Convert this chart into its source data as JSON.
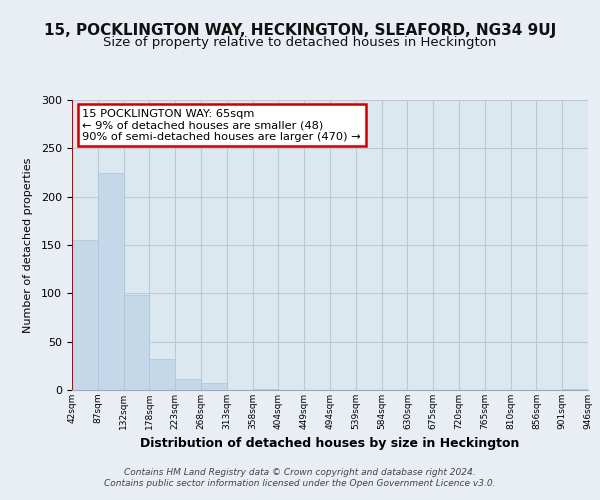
{
  "title": "15, POCKLINGTON WAY, HECKINGTON, SLEAFORD, NG34 9UJ",
  "subtitle": "Size of property relative to detached houses in Heckington",
  "xlabel": "Distribution of detached houses by size in Heckington",
  "ylabel": "Number of detached properties",
  "bar_values": [
    155,
    225,
    98,
    32,
    11,
    7,
    0,
    1,
    0,
    0,
    0,
    0,
    0,
    0,
    0,
    0,
    0,
    0,
    0,
    1
  ],
  "bar_labels": [
    "42sqm",
    "87sqm",
    "132sqm",
    "178sqm",
    "223sqm",
    "268sqm",
    "313sqm",
    "358sqm",
    "404sqm",
    "449sqm",
    "494sqm",
    "539sqm",
    "584sqm",
    "630sqm",
    "675sqm",
    "720sqm",
    "765sqm",
    "810sqm",
    "856sqm",
    "901sqm",
    "946sqm"
  ],
  "bar_color": "#c5d8ea",
  "bar_edge_color": "#aac4da",
  "annotation_box_text": "15 POCKLINGTON WAY: 65sqm\n← 9% of detached houses are smaller (48)\n90% of semi-detached houses are larger (470) →",
  "annotation_box_color": "#ffffff",
  "annotation_box_edge_color": "#cc0000",
  "red_line_color": "#cc0000",
  "ylim": [
    0,
    300
  ],
  "yticks": [
    0,
    50,
    100,
    150,
    200,
    250,
    300
  ],
  "footer_text": "Contains HM Land Registry data © Crown copyright and database right 2024.\nContains public sector information licensed under the Open Government Licence v3.0.",
  "bg_color": "#e8eef4",
  "plot_bg_color": "#dce8f0",
  "grid_color": "#b8cad8",
  "title_fontsize": 11,
  "subtitle_fontsize": 9.5,
  "ylabel_fontsize": 8,
  "xlabel_fontsize": 9,
  "footer_fontsize": 6.5
}
